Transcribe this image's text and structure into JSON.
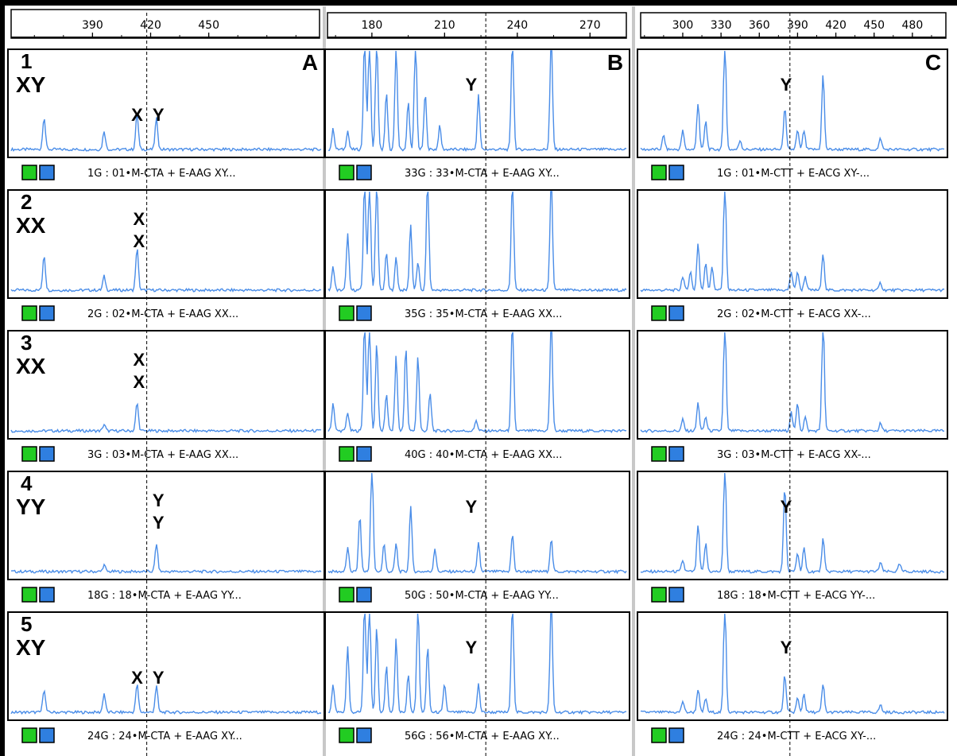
{
  "chart_data": [
    {
      "type": "line",
      "panel_label": "A",
      "xlim": [
        348,
        508
      ],
      "x_ticks": [
        390,
        420,
        450
      ],
      "cursor_x": 418,
      "grid": false,
      "traces": [
        {
          "sample_number": "1",
          "genotype": "XY",
          "caption": "1G : 01•M-CTA + E-AAG XY...",
          "peaks": [
            {
              "x": 365,
              "h": 0.35
            },
            {
              "x": 396,
              "h": 0.2
            },
            {
              "x": 413,
              "h": 0.38,
              "label": "X"
            },
            {
              "x": 423,
              "h": 0.33,
              "label": "Y"
            }
          ],
          "peak_labels": [
            {
              "text": "X",
              "x": 413
            },
            {
              "text": "Y",
              "x": 424
            }
          ]
        },
        {
          "sample_number": "2",
          "genotype": "XX",
          "caption": "2G : 02•M-CTA + E-AAG XX...",
          "peaks": [
            {
              "x": 365,
              "h": 0.38
            },
            {
              "x": 396,
              "h": 0.15
            },
            {
              "x": 413,
              "h": 0.45
            }
          ],
          "peak_labels": [
            {
              "text": "X",
              "x": 414,
              "row": 0
            },
            {
              "text": "X",
              "x": 414,
              "row": 1
            }
          ]
        },
        {
          "sample_number": "3",
          "genotype": "XX",
          "caption": "3G : 03•M-CTA + E-AAG XX...",
          "peaks": [
            {
              "x": 396,
              "h": 0.07
            },
            {
              "x": 413,
              "h": 0.3
            }
          ],
          "peak_labels": [
            {
              "text": "X",
              "x": 414,
              "row": 0
            },
            {
              "text": "X",
              "x": 414,
              "row": 1
            }
          ]
        },
        {
          "sample_number": "4",
          "genotype": "YY",
          "caption": "18G : 18•M-CTA + E-AAG YY...",
          "peaks": [
            {
              "x": 396,
              "h": 0.07
            },
            {
              "x": 423,
              "h": 0.3
            }
          ],
          "peak_labels": [
            {
              "text": "Y",
              "x": 424,
              "row": 0
            },
            {
              "text": "Y",
              "x": 424,
              "row": 1
            }
          ]
        },
        {
          "sample_number": "5",
          "genotype": "XY",
          "caption": "24G : 24•M-CTA + E-AAG XY...",
          "peaks": [
            {
              "x": 365,
              "h": 0.25
            },
            {
              "x": 396,
              "h": 0.2
            },
            {
              "x": 413,
              "h": 0.3
            },
            {
              "x": 423,
              "h": 0.28
            }
          ],
          "peak_labels": [
            {
              "text": "X",
              "x": 413
            },
            {
              "text": "Y",
              "x": 424
            }
          ]
        }
      ]
    },
    {
      "type": "line",
      "panel_label": "B",
      "xlim": [
        162,
        285
      ],
      "x_ticks": [
        180,
        210,
        240,
        270
      ],
      "cursor_x": 227,
      "grid": false,
      "traces": [
        {
          "caption": "33G : 33•M-CTA + E-AAG XY...",
          "peaks": [
            {
              "x": 164,
              "h": 0.22
            },
            {
              "x": 170,
              "h": 0.2
            },
            {
              "x": 177,
              "h": 1.2
            },
            {
              "x": 179,
              "h": 1.2
            },
            {
              "x": 182,
              "h": 1.2
            },
            {
              "x": 186,
              "h": 0.6
            },
            {
              "x": 190,
              "h": 1.1
            },
            {
              "x": 195,
              "h": 0.5
            },
            {
              "x": 198,
              "h": 1.2
            },
            {
              "x": 202,
              "h": 0.6
            },
            {
              "x": 208,
              "h": 0.25
            },
            {
              "x": 224,
              "h": 0.58
            },
            {
              "x": 238,
              "h": 1.2
            },
            {
              "x": 254,
              "h": 1.2
            }
          ],
          "peak_labels": [
            {
              "text": "Y",
              "x": 221
            }
          ]
        },
        {
          "caption": "35G : 35•M-CTA + E-AAG XX...",
          "peaks": [
            {
              "x": 164,
              "h": 0.25
            },
            {
              "x": 170,
              "h": 0.6
            },
            {
              "x": 177,
              "h": 1.2
            },
            {
              "x": 179,
              "h": 1.2
            },
            {
              "x": 182,
              "h": 1.2
            },
            {
              "x": 186,
              "h": 0.4
            },
            {
              "x": 190,
              "h": 0.35
            },
            {
              "x": 196,
              "h": 0.7
            },
            {
              "x": 199,
              "h": 0.3
            },
            {
              "x": 203,
              "h": 1.2
            },
            {
              "x": 238,
              "h": 1.2
            },
            {
              "x": 254,
              "h": 1.2
            }
          ],
          "peak_labels": []
        },
        {
          "caption": "40G : 40•M-CTA + E-AAG XX...",
          "peaks": [
            {
              "x": 164,
              "h": 0.3
            },
            {
              "x": 170,
              "h": 0.2
            },
            {
              "x": 177,
              "h": 1.2
            },
            {
              "x": 179,
              "h": 1.2
            },
            {
              "x": 182,
              "h": 0.95
            },
            {
              "x": 186,
              "h": 0.4
            },
            {
              "x": 190,
              "h": 0.8
            },
            {
              "x": 194,
              "h": 0.9
            },
            {
              "x": 199,
              "h": 0.8
            },
            {
              "x": 204,
              "h": 0.4
            },
            {
              "x": 223,
              "h": 0.12
            },
            {
              "x": 238,
              "h": 1.2
            },
            {
              "x": 254,
              "h": 1.2
            }
          ],
          "peak_labels": []
        },
        {
          "caption": "50G : 50•M-CTA + E-AAG YY...",
          "peaks": [
            {
              "x": 170,
              "h": 0.25
            },
            {
              "x": 175,
              "h": 0.6
            },
            {
              "x": 180,
              "h": 1.2
            },
            {
              "x": 185,
              "h": 0.3
            },
            {
              "x": 190,
              "h": 0.3
            },
            {
              "x": 196,
              "h": 0.7
            },
            {
              "x": 206,
              "h": 0.25
            },
            {
              "x": 224,
              "h": 0.3
            },
            {
              "x": 238,
              "h": 0.4
            },
            {
              "x": 254,
              "h": 0.35
            }
          ],
          "peak_labels": [
            {
              "text": "Y",
              "x": 221
            }
          ]
        },
        {
          "caption": "56G : 56•M-CTA + E-AAG XY...",
          "peaks": [
            {
              "x": 164,
              "h": 0.3
            },
            {
              "x": 170,
              "h": 0.7
            },
            {
              "x": 177,
              "h": 1.2
            },
            {
              "x": 179,
              "h": 1.2
            },
            {
              "x": 182,
              "h": 0.9
            },
            {
              "x": 186,
              "h": 0.5
            },
            {
              "x": 190,
              "h": 0.8
            },
            {
              "x": 195,
              "h": 0.4
            },
            {
              "x": 199,
              "h": 1.2
            },
            {
              "x": 203,
              "h": 0.7
            },
            {
              "x": 210,
              "h": 0.3
            },
            {
              "x": 224,
              "h": 0.3
            },
            {
              "x": 238,
              "h": 1.2
            },
            {
              "x": 254,
              "h": 1.2
            }
          ],
          "peak_labels": [
            {
              "text": "Y",
              "x": 221
            }
          ]
        }
      ]
    },
    {
      "type": "line",
      "panel_label": "C",
      "xlim": [
        267,
        505
      ],
      "x_ticks": [
        300,
        330,
        360,
        390,
        420,
        450,
        480
      ],
      "cursor_x": 384,
      "grid": false,
      "traces": [
        {
          "caption": "1G : 01•M-CTT + E-ACG XY-...",
          "peaks": [
            {
              "x": 285,
              "h": 0.15
            },
            {
              "x": 300,
              "h": 0.2
            },
            {
              "x": 312,
              "h": 0.5
            },
            {
              "x": 318,
              "h": 0.3
            },
            {
              "x": 333,
              "h": 1.2
            },
            {
              "x": 345,
              "h": 0.1
            },
            {
              "x": 380,
              "h": 0.45
            },
            {
              "x": 390,
              "h": 0.2
            },
            {
              "x": 395,
              "h": 0.2
            },
            {
              "x": 410,
              "h": 0.8
            },
            {
              "x": 455,
              "h": 0.12
            }
          ],
          "peak_labels": [
            {
              "text": "Y",
              "x": 381
            }
          ]
        },
        {
          "caption": "2G : 02•M-CTT + E-ACG XX-...",
          "peaks": [
            {
              "x": 300,
              "h": 0.15
            },
            {
              "x": 306,
              "h": 0.2
            },
            {
              "x": 312,
              "h": 0.5
            },
            {
              "x": 318,
              "h": 0.3
            },
            {
              "x": 323,
              "h": 0.25
            },
            {
              "x": 333,
              "h": 1.2
            },
            {
              "x": 385,
              "h": 0.2
            },
            {
              "x": 390,
              "h": 0.2
            },
            {
              "x": 396,
              "h": 0.15
            },
            {
              "x": 410,
              "h": 0.4
            },
            {
              "x": 455,
              "h": 0.08
            }
          ],
          "peak_labels": []
        },
        {
          "caption": "3G : 03•M-CTT + E-ACG XX-...",
          "peaks": [
            {
              "x": 300,
              "h": 0.12
            },
            {
              "x": 312,
              "h": 0.3
            },
            {
              "x": 318,
              "h": 0.15
            },
            {
              "x": 333,
              "h": 1.2
            },
            {
              "x": 385,
              "h": 0.2
            },
            {
              "x": 390,
              "h": 0.3
            },
            {
              "x": 396,
              "h": 0.15
            },
            {
              "x": 410,
              "h": 1.2
            },
            {
              "x": 455,
              "h": 0.08
            }
          ],
          "peak_labels": []
        },
        {
          "caption": "18G : 18•M-CTT + E-ACG YY-...",
          "peaks": [
            {
              "x": 300,
              "h": 0.12
            },
            {
              "x": 312,
              "h": 0.5
            },
            {
              "x": 318,
              "h": 0.3
            },
            {
              "x": 333,
              "h": 1.2
            },
            {
              "x": 380,
              "h": 0.92
            },
            {
              "x": 390,
              "h": 0.2
            },
            {
              "x": 395,
              "h": 0.25
            },
            {
              "x": 410,
              "h": 0.35
            },
            {
              "x": 455,
              "h": 0.1
            },
            {
              "x": 470,
              "h": 0.08
            }
          ],
          "peak_labels": [
            {
              "text": "Y",
              "x": 381
            }
          ]
        },
        {
          "caption": "24G : 24•M-CTT + E-ACG XY-...",
          "peaks": [
            {
              "x": 300,
              "h": 0.12
            },
            {
              "x": 312,
              "h": 0.25
            },
            {
              "x": 318,
              "h": 0.15
            },
            {
              "x": 333,
              "h": 1.2
            },
            {
              "x": 380,
              "h": 0.4
            },
            {
              "x": 390,
              "h": 0.15
            },
            {
              "x": 395,
              "h": 0.2
            },
            {
              "x": 410,
              "h": 0.3
            },
            {
              "x": 455,
              "h": 0.08
            }
          ],
          "peak_labels": [
            {
              "text": "Y",
              "x": 381
            }
          ]
        }
      ]
    }
  ],
  "colors": {
    "trace": "#4a8de8",
    "cursor": "#000000",
    "swatch_green": "#22cc22",
    "swatch_blue": "#2f7fe0"
  }
}
